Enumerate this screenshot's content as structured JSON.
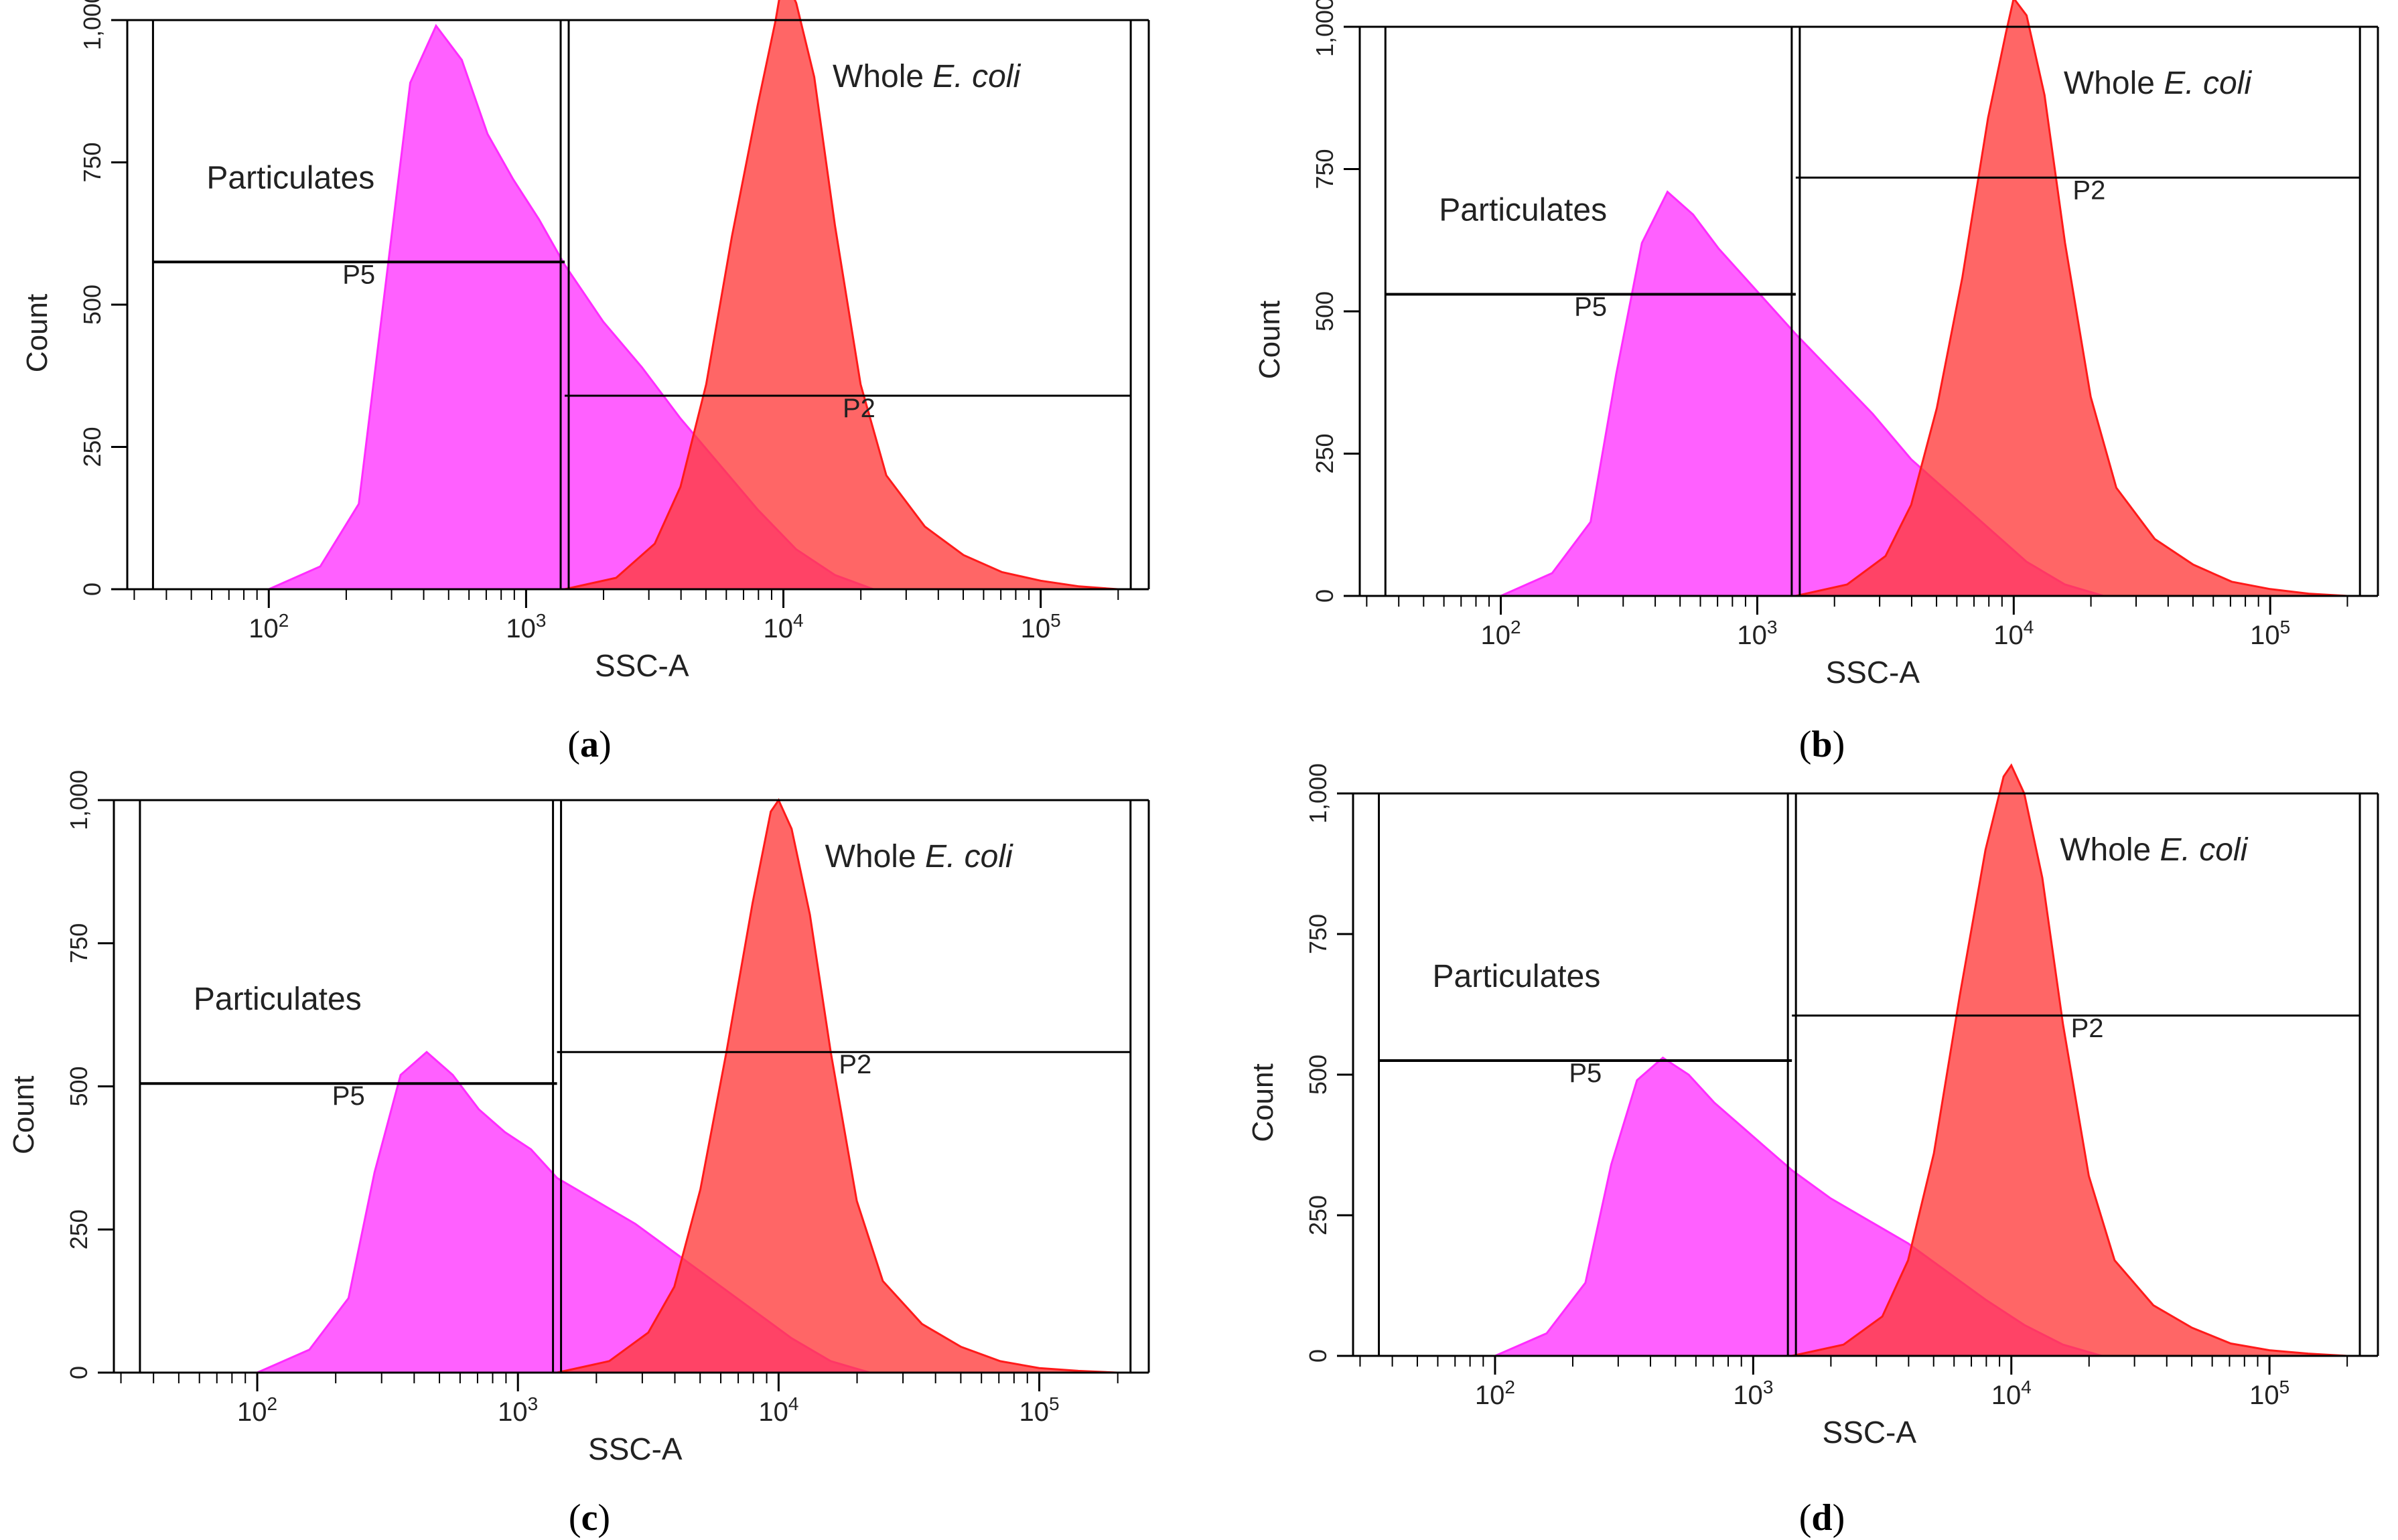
{
  "figure": {
    "panels": [
      {
        "id": "a",
        "caption_letter": "a",
        "p5_label": "P5",
        "p2_label": "P2",
        "particulates_label": "Particulates",
        "whole_prefix": "Whole ",
        "whole_italic": "E. coli"
      },
      {
        "id": "b",
        "caption_letter": "b",
        "p5_label": "P5",
        "p2_label": "P2",
        "particulates_label": "Particulates",
        "whole_prefix": "Whole ",
        "whole_italic": "E. coli"
      },
      {
        "id": "c",
        "caption_letter": "c",
        "p5_label": "P5",
        "p2_label": "P2",
        "particulates_label": "Particulates",
        "whole_prefix": "Whole ",
        "whole_italic": "E. coli"
      },
      {
        "id": "d",
        "caption_letter": "d",
        "p5_label": "P5",
        "p2_label": "P2",
        "particulates_label": "Particulates",
        "whole_prefix": "Whole ",
        "whole_italic": "E. coli"
      }
    ]
  },
  "chart_data": [
    {
      "type": "area",
      "panel": "a",
      "xlabel": "SSC-A",
      "ylabel": "Count",
      "x_scale": "log",
      "x_ticks": [
        "10^2",
        "10^3",
        "10^4",
        "10^5"
      ],
      "ylim": [
        0,
        1000
      ],
      "y_ticks": [
        "0",
        "250",
        "500",
        "750",
        "1,000"
      ],
      "x_exponent_range": [
        1.45,
        5.42
      ],
      "gate_divider_exponent": 3.15,
      "gate_outer_exponents": [
        1.55,
        5.35
      ],
      "gates": [
        {
          "name": "P5",
          "count_level": 575
        },
        {
          "name": "P2",
          "count_level": 340
        }
      ],
      "series": [
        {
          "name": "Particulates",
          "color": "#ff44ff",
          "log_x": [
            2.0,
            2.2,
            2.35,
            2.45,
            2.55,
            2.65,
            2.75,
            2.85,
            2.95,
            3.05,
            3.15,
            3.3,
            3.45,
            3.6,
            3.75,
            3.9,
            4.05,
            4.2,
            4.35
          ],
          "counts": [
            0,
            40,
            150,
            520,
            890,
            990,
            930,
            800,
            720,
            650,
            570,
            470,
            390,
            300,
            220,
            140,
            70,
            25,
            0
          ]
        },
        {
          "name": "Whole E. coli",
          "color": "#ff3b3b",
          "log_x": [
            3.15,
            3.35,
            3.5,
            3.6,
            3.7,
            3.8,
            3.9,
            3.97,
            4.0,
            4.05,
            4.12,
            4.2,
            4.3,
            4.4,
            4.55,
            4.7,
            4.85,
            5.0,
            5.15,
            5.3
          ],
          "counts": [
            0,
            20,
            80,
            180,
            360,
            620,
            850,
            1000,
            1080,
            1030,
            900,
            640,
            360,
            200,
            110,
            60,
            30,
            15,
            5,
            0
          ]
        }
      ]
    },
    {
      "type": "area",
      "panel": "b",
      "xlabel": "SSC-A",
      "ylabel": "Count",
      "x_scale": "log",
      "x_ticks": [
        "10^2",
        "10^3",
        "10^4",
        "10^5"
      ],
      "ylim": [
        0,
        1000
      ],
      "y_ticks": [
        "0",
        "250",
        "500",
        "750",
        "1,000"
      ],
      "x_exponent_range": [
        1.45,
        5.42
      ],
      "gate_divider_exponent": 3.15,
      "gate_outer_exponents": [
        1.55,
        5.35
      ],
      "gates": [
        {
          "name": "P5",
          "count_level": 530
        },
        {
          "name": "P2",
          "count_level": 735
        }
      ],
      "series": [
        {
          "name": "Particulates",
          "color": "#ff44ff",
          "log_x": [
            2.0,
            2.2,
            2.35,
            2.45,
            2.55,
            2.65,
            2.75,
            2.85,
            2.95,
            3.05,
            3.15,
            3.3,
            3.45,
            3.6,
            3.75,
            3.9,
            4.05,
            4.2,
            4.35
          ],
          "counts": [
            0,
            40,
            130,
            390,
            620,
            710,
            670,
            610,
            560,
            510,
            460,
            390,
            320,
            240,
            180,
            120,
            60,
            20,
            0
          ]
        },
        {
          "name": "Whole E. coli",
          "color": "#ff3b3b",
          "log_x": [
            3.15,
            3.35,
            3.5,
            3.6,
            3.7,
            3.8,
            3.9,
            3.97,
            4.0,
            4.05,
            4.12,
            4.2,
            4.3,
            4.4,
            4.55,
            4.7,
            4.85,
            5.0,
            5.15,
            5.3
          ],
          "counts": [
            0,
            20,
            70,
            160,
            330,
            560,
            840,
            990,
            1050,
            1020,
            880,
            620,
            350,
            190,
            100,
            55,
            25,
            12,
            4,
            0
          ]
        }
      ]
    },
    {
      "type": "area",
      "panel": "c",
      "xlabel": "SSC-A",
      "ylabel": "Count",
      "x_scale": "log",
      "x_ticks": [
        "10^2",
        "10^3",
        "10^4",
        "10^5"
      ],
      "ylim": [
        0,
        1000
      ],
      "y_ticks": [
        "0",
        "250",
        "500",
        "750",
        "1,000"
      ],
      "x_exponent_range": [
        1.45,
        5.42
      ],
      "gate_divider_exponent": 3.15,
      "gate_outer_exponents": [
        1.55,
        5.35
      ],
      "gates": [
        {
          "name": "P5",
          "count_level": 505
        },
        {
          "name": "P2",
          "count_level": 560
        }
      ],
      "series": [
        {
          "name": "Particulates",
          "color": "#ff44ff",
          "log_x": [
            2.0,
            2.2,
            2.35,
            2.45,
            2.55,
            2.65,
            2.75,
            2.85,
            2.95,
            3.05,
            3.15,
            3.3,
            3.45,
            3.6,
            3.75,
            3.9,
            4.05,
            4.2,
            4.35
          ],
          "counts": [
            0,
            40,
            130,
            350,
            520,
            560,
            520,
            460,
            420,
            390,
            340,
            300,
            260,
            210,
            160,
            110,
            60,
            20,
            0
          ]
        },
        {
          "name": "Whole E. coli",
          "color": "#ff3b3b",
          "log_x": [
            3.15,
            3.35,
            3.5,
            3.6,
            3.7,
            3.8,
            3.9,
            3.97,
            4.0,
            4.05,
            4.12,
            4.2,
            4.3,
            4.4,
            4.55,
            4.7,
            4.85,
            5.0,
            5.15,
            5.3
          ],
          "counts": [
            0,
            20,
            70,
            150,
            320,
            560,
            820,
            980,
            1000,
            950,
            800,
            560,
            300,
            160,
            85,
            45,
            20,
            8,
            3,
            0
          ]
        }
      ]
    },
    {
      "type": "area",
      "panel": "d",
      "xlabel": "SSC-A",
      "ylabel": "Count",
      "x_scale": "log",
      "x_ticks": [
        "10^2",
        "10^3",
        "10^4",
        "10^5"
      ],
      "ylim": [
        0,
        1000
      ],
      "y_ticks": [
        "0",
        "250",
        "500",
        "750",
        "1,000"
      ],
      "x_exponent_range": [
        1.45,
        5.42
      ],
      "gate_divider_exponent": 3.15,
      "gate_outer_exponents": [
        1.55,
        5.35
      ],
      "gates": [
        {
          "name": "P5",
          "count_level": 525
        },
        {
          "name": "P2",
          "count_level": 605
        }
      ],
      "series": [
        {
          "name": "Particulates",
          "color": "#ff44ff",
          "log_x": [
            2.0,
            2.2,
            2.35,
            2.45,
            2.55,
            2.65,
            2.75,
            2.85,
            2.95,
            3.05,
            3.15,
            3.3,
            3.45,
            3.6,
            3.75,
            3.9,
            4.05,
            4.2,
            4.35
          ],
          "counts": [
            0,
            40,
            130,
            340,
            490,
            530,
            500,
            450,
            410,
            370,
            330,
            280,
            240,
            200,
            150,
            100,
            55,
            20,
            0
          ]
        },
        {
          "name": "Whole E. coli",
          "color": "#ff3b3b",
          "log_x": [
            3.15,
            3.35,
            3.5,
            3.6,
            3.7,
            3.8,
            3.9,
            3.97,
            4.0,
            4.05,
            4.12,
            4.2,
            4.3,
            4.4,
            4.55,
            4.7,
            4.85,
            5.0,
            5.15,
            5.3
          ],
          "counts": [
            0,
            20,
            70,
            170,
            360,
            640,
            900,
            1030,
            1050,
            1000,
            850,
            590,
            320,
            170,
            90,
            50,
            22,
            10,
            4,
            0
          ]
        }
      ]
    }
  ]
}
